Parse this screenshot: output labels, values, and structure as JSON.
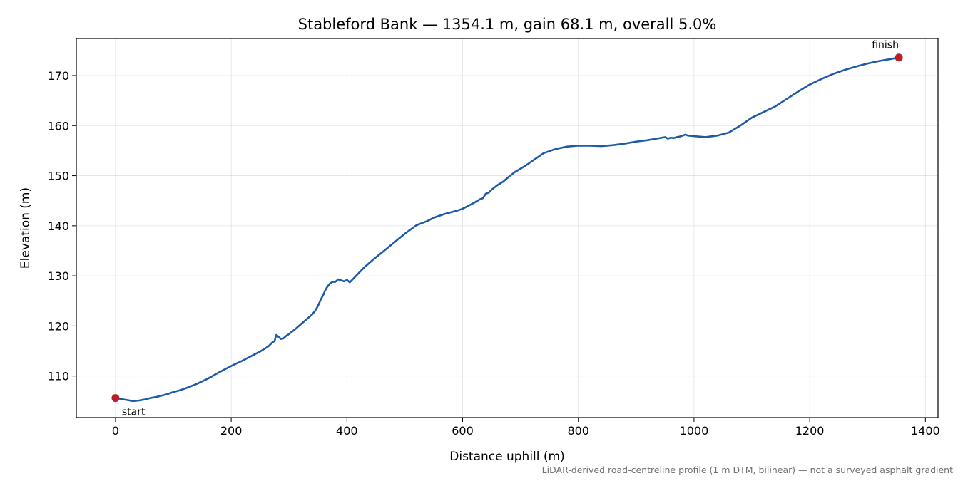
{
  "chart_data": {
    "type": "line",
    "title": "Stableford Bank — 1354.1 m, gain 68.1 m, overall 5.0%",
    "xlabel": "Distance uphill (m)",
    "ylabel": "Elevation (m)",
    "xlim": [
      -67.7,
      1421.8
    ],
    "ylim": [
      101.7,
      177.4
    ],
    "xticks": [
      0,
      200,
      400,
      600,
      800,
      1000,
      1200,
      1400
    ],
    "yticks": [
      110,
      120,
      130,
      140,
      150,
      160,
      170
    ],
    "grid": true,
    "footnote": "LiDAR-derived road-centreline profile (1 m DTM, bilinear) — not a surveyed asphalt gradient",
    "series": [
      {
        "color": "#1f5aa6",
        "x": [
          0,
          10,
          20,
          30,
          40,
          50,
          60,
          70,
          80,
          90,
          100,
          110,
          120,
          140,
          160,
          180,
          200,
          220,
          240,
          250,
          260,
          265,
          270,
          275,
          278,
          282,
          286,
          290,
          295,
          300,
          310,
          320,
          330,
          340,
          345,
          350,
          355,
          360,
          362,
          365,
          370,
          375,
          380,
          385,
          390,
          395,
          400,
          405,
          410,
          420,
          430,
          440,
          450,
          460,
          480,
          500,
          520,
          540,
          545,
          550,
          560,
          570,
          580,
          590,
          600,
          610,
          620,
          630,
          635,
          640,
          645,
          650,
          660,
          670,
          680,
          690,
          700,
          710,
          720,
          740,
          760,
          780,
          800,
          820,
          840,
          860,
          880,
          900,
          920,
          940,
          950,
          955,
          960,
          965,
          970,
          975,
          980,
          985,
          990,
          1000,
          1020,
          1040,
          1060,
          1070,
          1080,
          1090,
          1100,
          1120,
          1140,
          1160,
          1180,
          1200,
          1220,
          1240,
          1260,
          1280,
          1300,
          1320,
          1340,
          1354.1
        ],
        "y": [
          105.6,
          105.4,
          105.2,
          105.0,
          105.1,
          105.3,
          105.6,
          105.8,
          106.1,
          106.4,
          106.8,
          107.1,
          107.5,
          108.4,
          109.5,
          110.8,
          112.0,
          113.1,
          114.3,
          114.9,
          115.6,
          116.0,
          116.6,
          117.0,
          118.2,
          117.8,
          117.4,
          117.5,
          118.0,
          118.4,
          119.3,
          120.3,
          121.3,
          122.3,
          123.0,
          124.0,
          125.3,
          126.4,
          127.0,
          127.6,
          128.4,
          128.8,
          128.8,
          129.3,
          129.1,
          128.9,
          129.2,
          128.7,
          129.3,
          130.5,
          131.7,
          132.7,
          133.7,
          134.6,
          136.5,
          138.4,
          140.1,
          141.0,
          141.3,
          141.6,
          142.0,
          142.4,
          142.7,
          143.0,
          143.4,
          144.0,
          144.6,
          145.3,
          145.5,
          146.4,
          146.6,
          147.2,
          148.1,
          148.8,
          149.8,
          150.7,
          151.4,
          152.1,
          152.9,
          154.5,
          155.3,
          155.8,
          156.0,
          156.0,
          155.9,
          156.1,
          156.4,
          156.8,
          157.1,
          157.5,
          157.7,
          157.4,
          157.6,
          157.5,
          157.7,
          157.8,
          158.0,
          158.2,
          158.0,
          157.9,
          157.7,
          158.0,
          158.6,
          159.3,
          160.0,
          160.8,
          161.6,
          162.7,
          163.8,
          165.3,
          166.8,
          168.2,
          169.3,
          170.3,
          171.1,
          171.8,
          172.4,
          172.9,
          173.3,
          173.6
        ]
      }
    ],
    "annotations": [
      {
        "text": "start",
        "x": 0,
        "y": 105.6,
        "color": "#bb1e25"
      },
      {
        "text": "finish",
        "x": 1354.1,
        "y": 173.6,
        "color": "#bb1e25"
      }
    ]
  }
}
